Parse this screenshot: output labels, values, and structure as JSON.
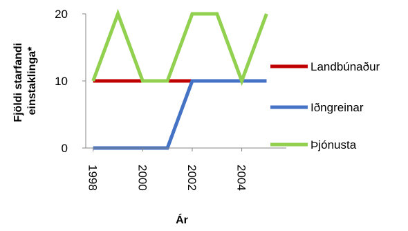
{
  "chart_data": {
    "type": "line",
    "title": "",
    "xlabel": "Ár",
    "ylabel": "Fjöldi starfandi einstaklinga*",
    "ylabel_lines": [
      "Fjöldi starfandi",
      "einstaklinga*"
    ],
    "x": [
      1998,
      1999,
      2000,
      2001,
      2002,
      2003,
      2004,
      2005
    ],
    "xlim": [
      1997.7,
      2005.8
    ],
    "x_ticks": [
      "1998",
      "2000",
      "2002",
      "2004"
    ],
    "ylim": [
      0,
      20
    ],
    "y_ticks": [
      "0",
      "10",
      "20"
    ],
    "grid": false,
    "legend_position": "right",
    "series": [
      {
        "name": "Landbúnaður",
        "color": "#c00000",
        "values": [
          10,
          10,
          10,
          10,
          10,
          10,
          10,
          10
        ]
      },
      {
        "name": "Iðngreinar",
        "color": "#4472c4",
        "values": [
          0,
          0,
          0,
          0,
          10,
          10,
          10,
          10
        ]
      },
      {
        "name": "Þjónusta",
        "color": "#92d050",
        "values": [
          10,
          20,
          10,
          10,
          20,
          20,
          10,
          20
        ]
      }
    ]
  }
}
